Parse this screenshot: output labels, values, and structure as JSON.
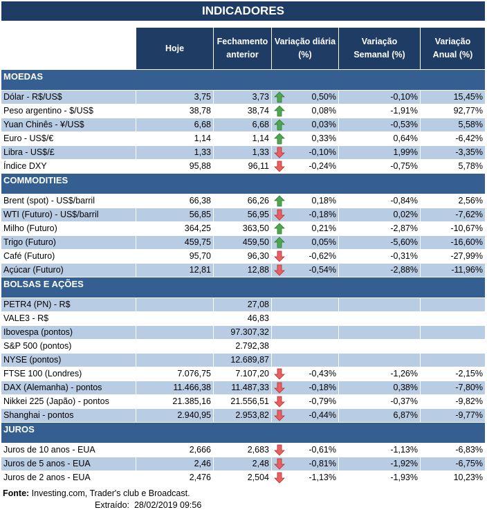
{
  "title": "INDICADORES",
  "columns": [
    "Hoje",
    "Fechamento anterior",
    "Variação diária (%)",
    "Variação Semanal (%)",
    "Variação Anual (%)"
  ],
  "colors": {
    "header": "#1f3d64",
    "section": "#365f91",
    "row_highlight": "#b8cce4",
    "arrow_up": "#4ea64e",
    "arrow_down": "#e05050"
  },
  "sections": [
    {
      "name": "MOEDAS",
      "rows": [
        {
          "label": "Dólar - R$/US$",
          "hoje": "3,75",
          "fech": "3,73",
          "trend": "up",
          "diaria": "0,50%",
          "semanal": "-0,10%",
          "anual": "15,45%",
          "highlight": true
        },
        {
          "label": "Peso argentino - $/US$",
          "hoje": "38,78",
          "fech": "38,74",
          "trend": "up",
          "diaria": "0,08%",
          "semanal": "-1,91%",
          "anual": "92,77%",
          "highlight": false
        },
        {
          "label": "Yuan Chinês - ¥/US$",
          "hoje": "6,68",
          "fech": "6,68",
          "trend": "up",
          "diaria": "0,03%",
          "semanal": "-0,53%",
          "anual": "5,58%",
          "highlight": true
        },
        {
          "label": "Euro - US$/€",
          "hoje": "1,14",
          "fech": "1,14",
          "trend": "up",
          "diaria": "0,33%",
          "semanal": "0,64%",
          "anual": "-6,42%",
          "highlight": false
        },
        {
          "label": "Libra - US$/£",
          "hoje": "1,33",
          "fech": "1,33",
          "trend": "down",
          "diaria": "-0,10%",
          "semanal": "1,99%",
          "anual": "-3,35%",
          "highlight": true
        },
        {
          "label": "Índice DXY",
          "hoje": "95,88",
          "fech": "96,11",
          "trend": "down",
          "diaria": "-0,24%",
          "semanal": "-0,75%",
          "anual": "5,78%",
          "highlight": false
        }
      ]
    },
    {
      "name": "COMMODITIES",
      "rows": [
        {
          "label": "Brent (spot) - US$/barril",
          "hoje": "66,38",
          "fech": "66,26",
          "trend": "up",
          "diaria": "0,18%",
          "semanal": "-0,84%",
          "anual": "2,56%",
          "highlight": false
        },
        {
          "label": "WTI (Futuro) - US$/barril",
          "hoje": "56,85",
          "fech": "56,95",
          "trend": "down",
          "diaria": "-0,18%",
          "semanal": "0,02%",
          "anual": "-7,62%",
          "highlight": true
        },
        {
          "label": "Milho (Futuro)",
          "hoje": "364,25",
          "fech": "363,50",
          "trend": "up",
          "diaria": "0,21%",
          "semanal": "-2,87%",
          "anual": "-10,67%",
          "highlight": false
        },
        {
          "label": "Trigo (Futuro)",
          "hoje": "459,75",
          "fech": "459,50",
          "trend": "up",
          "diaria": "0,05%",
          "semanal": "-5,60%",
          "anual": "-16,60%",
          "highlight": true
        },
        {
          "label": "Café (Futuro)",
          "hoje": "95,70",
          "fech": "96,30",
          "trend": "down",
          "diaria": "-0,62%",
          "semanal": "-0,31%",
          "anual": "-27,99%",
          "highlight": false
        },
        {
          "label": "Açúcar (Futuro)",
          "hoje": "12,81",
          "fech": "12,88",
          "trend": "down",
          "diaria": "-0,54%",
          "semanal": "-2,88%",
          "anual": "-11,96%",
          "highlight": true
        }
      ]
    },
    {
      "name": "BOLSAS E AÇÕES",
      "rows": [
        {
          "label": "PETR4 (PN) - R$",
          "hoje": "",
          "fech": "27,08",
          "trend": "",
          "diaria": "",
          "semanal": "",
          "anual": "",
          "highlight": true
        },
        {
          "label": "VALE3 - R$",
          "hoje": "",
          "fech": "46,83",
          "trend": "",
          "diaria": "",
          "semanal": "",
          "anual": "",
          "highlight": false
        },
        {
          "label": "Ibovespa (pontos)",
          "hoje": "",
          "fech": "97.307,32",
          "trend": "",
          "diaria": "",
          "semanal": "",
          "anual": "",
          "highlight": true
        },
        {
          "label": "S&P 500 (pontos)",
          "hoje": "",
          "fech": "2.792,38",
          "trend": "",
          "diaria": "",
          "semanal": "",
          "anual": "",
          "highlight": false
        },
        {
          "label": "NYSE (pontos)",
          "hoje": "",
          "fech": "12.689,87",
          "trend": "",
          "diaria": "",
          "semanal": "",
          "anual": "",
          "highlight": true
        },
        {
          "label": "FTSE 100 (Londres)",
          "hoje": "7.076,75",
          "fech": "7.107,20",
          "trend": "down",
          "diaria": "-0,43%",
          "semanal": "-1,26%",
          "anual": "-2,15%",
          "highlight": false
        },
        {
          "label": "DAX (Alemanha) - pontos",
          "hoje": "11.466,38",
          "fech": "11.487,33",
          "trend": "down",
          "diaria": "-0,18%",
          "semanal": "0,38%",
          "anual": "-7,80%",
          "highlight": true
        },
        {
          "label": "Nikkei 225 (Japão) - pontos",
          "hoje": "21.385,16",
          "fech": "21.556,51",
          "trend": "down",
          "diaria": "-0,79%",
          "semanal": "-0,37%",
          "anual": "-9,82%",
          "highlight": false
        },
        {
          "label": "Shanghai - pontos",
          "hoje": "2.940,95",
          "fech": "2.953,82",
          "trend": "down",
          "diaria": "-0,44%",
          "semanal": "6,87%",
          "anual": "-9,77%",
          "highlight": true
        }
      ]
    },
    {
      "name": "JUROS",
      "rows": [
        {
          "label": "Juros de 10 anos - EUA",
          "hoje": "2,666",
          "fech": "2,683",
          "trend": "down",
          "diaria": "-0,61%",
          "semanal": "-1,13%",
          "anual": "-6,83%",
          "highlight": false
        },
        {
          "label": "Juros de 5 anos - EUA",
          "hoje": "2,46",
          "fech": "2,48",
          "trend": "down",
          "diaria": "-0,81%",
          "semanal": "-1,92%",
          "anual": "-6,75%",
          "highlight": true
        },
        {
          "label": "Juros de 2 anos - EUA",
          "hoje": "2,476",
          "fech": "2,504",
          "trend": "down",
          "diaria": "-1,13%",
          "semanal": "-1,93%",
          "anual": "10,23%",
          "highlight": false
        }
      ]
    }
  ],
  "footer": {
    "source_label": "Fonte:",
    "source_text": " Investing.com, Trader's club e Broadcast.",
    "extracted_label": "Extraído:",
    "extracted_value": "28/02/2019 09:56"
  }
}
